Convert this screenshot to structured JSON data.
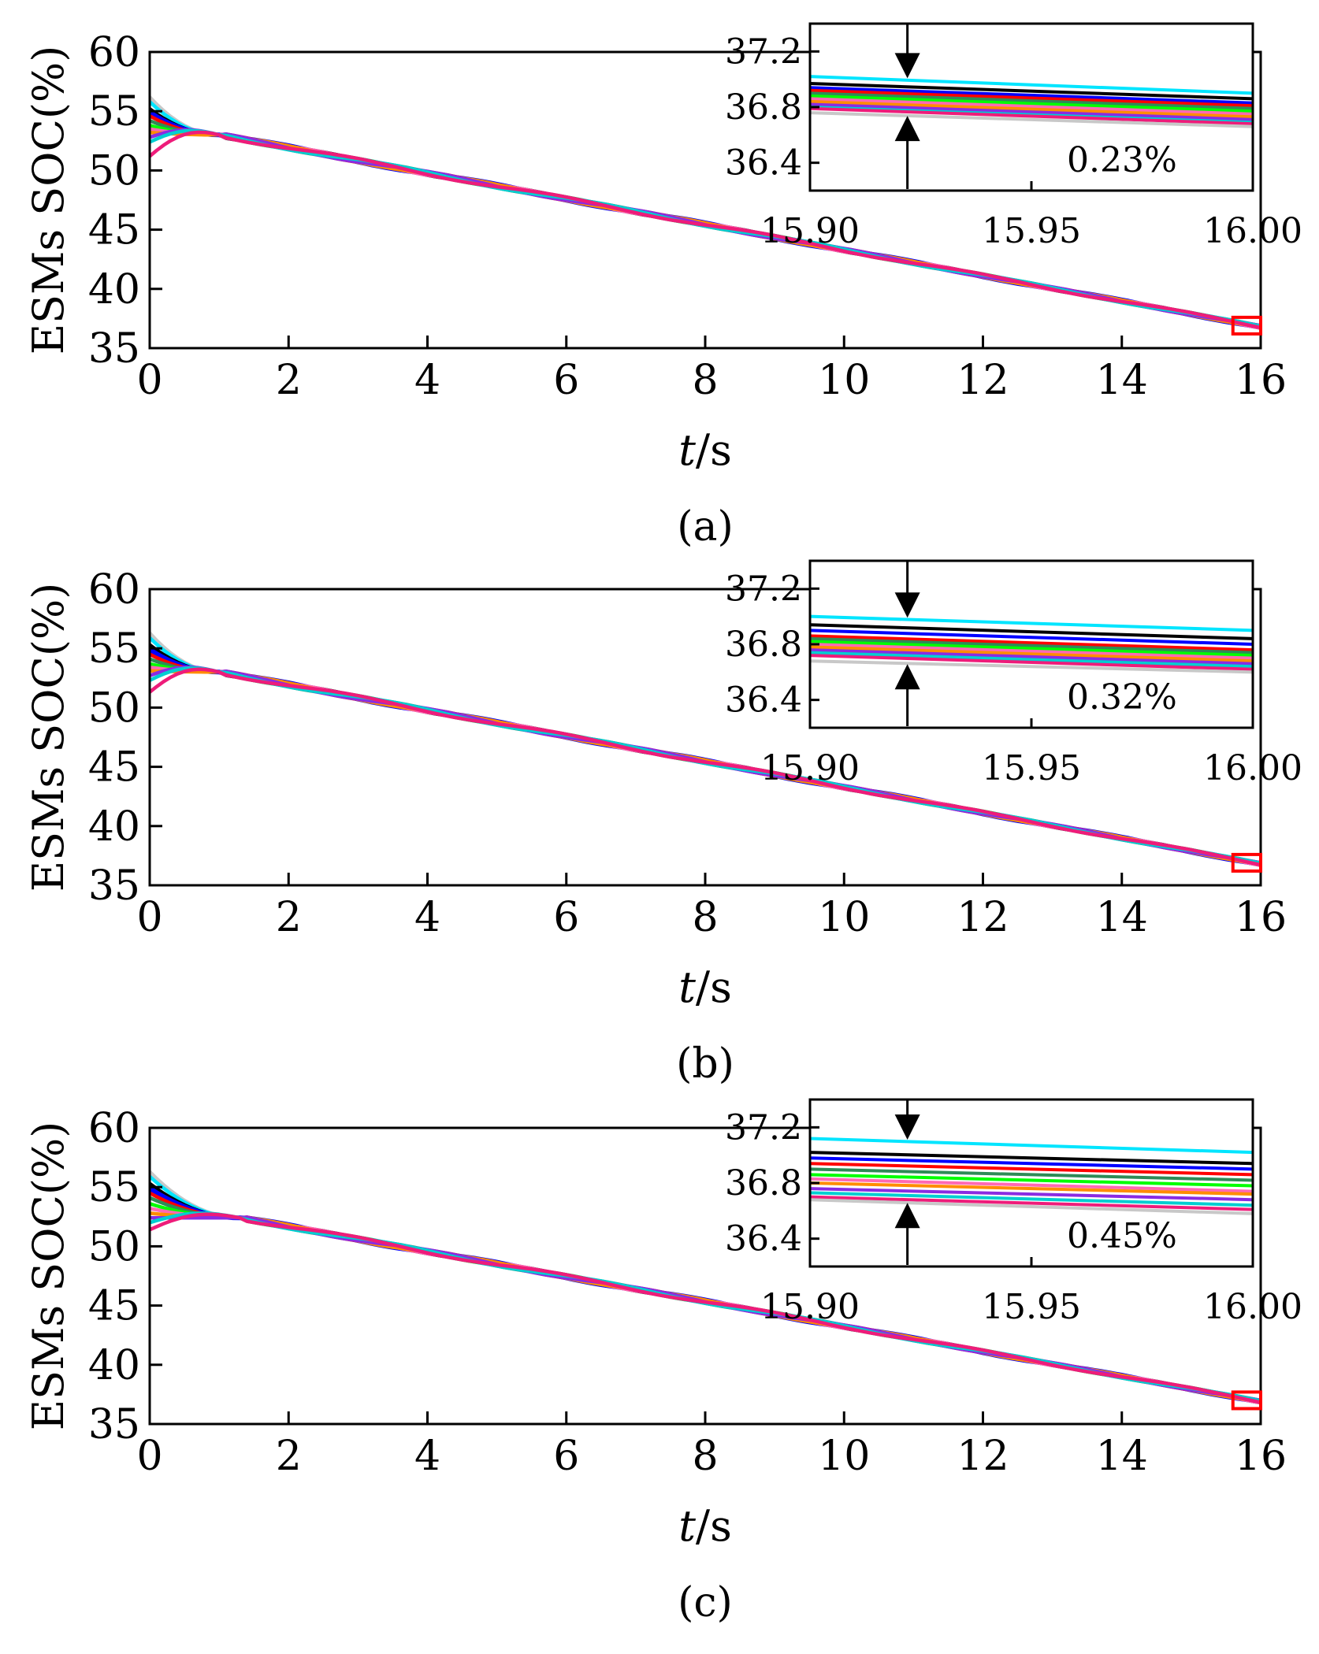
{
  "figure": {
    "panels": [
      {
        "caption": "(a)",
        "ylabel": "ESMs SOC(%)",
        "xlabel_italic": "t",
        "xlabel_unit": "/s",
        "inset_spread": "0.23%"
      },
      {
        "caption": "(b)",
        "ylabel": "ESMs SOC(%)",
        "xlabel_italic": "t",
        "xlabel_unit": "/s",
        "inset_spread": "0.32%"
      },
      {
        "caption": "(c)",
        "ylabel": "ESMs SOC(%)",
        "xlabel_italic": "t",
        "xlabel_unit": "/s",
        "inset_spread": "0.45%"
      }
    ]
  },
  "chart_data": [
    {
      "type": "line",
      "panel": "(a)",
      "xlabel": "t/s",
      "ylabel": "ESMs SOC(%)",
      "xlim": [
        0,
        16
      ],
      "ylim": [
        35,
        60
      ],
      "xticks": [
        0,
        2,
        4,
        6,
        8,
        10,
        12,
        14,
        16
      ],
      "yticks": [
        35,
        40,
        45,
        50,
        55,
        60
      ],
      "series_initial_soc": [
        56.2,
        55.8,
        55.2,
        54.9,
        54.6,
        54.2,
        53.8,
        53.5,
        53.2,
        52.8,
        52.4,
        51.2
      ],
      "converge_time": 1.0,
      "converge_soc": 53.0,
      "end_time": 16,
      "end_soc": 36.8,
      "zoom_box": {
        "x": [
          15.6,
          16.0
        ],
        "y": [
          36.2,
          37.6
        ]
      },
      "inset": {
        "xlim": [
          15.9,
          16.0
        ],
        "ylim": [
          36.2,
          37.4
        ],
        "xticks": [
          "15.90",
          "15.95",
          "16.00"
        ],
        "yticks": [
          "36.4",
          "36.8",
          "37.2"
        ],
        "start_values": [
          37.02,
          36.97,
          36.94,
          36.92,
          36.9,
          36.88,
          36.86,
          36.84,
          36.82,
          36.8,
          36.79,
          36.76
        ],
        "end_values": [
          36.9,
          36.86,
          36.83,
          36.81,
          36.79,
          36.77,
          36.75,
          36.73,
          36.71,
          36.69,
          36.68,
          36.66
        ],
        "arrow_x": 15.922,
        "spread": "0.23%"
      }
    },
    {
      "type": "line",
      "panel": "(b)",
      "xlabel": "t/s",
      "ylabel": "ESMs SOC(%)",
      "xlim": [
        0,
        16
      ],
      "ylim": [
        35,
        60
      ],
      "xticks": [
        0,
        2,
        4,
        6,
        8,
        10,
        12,
        14,
        16
      ],
      "yticks": [
        35,
        40,
        45,
        50,
        55,
        60
      ],
      "series_initial_soc": [
        56.3,
        55.9,
        55.3,
        54.9,
        54.5,
        54.1,
        53.7,
        53.4,
        53.1,
        52.7,
        52.3,
        51.3
      ],
      "converge_time": 1.0,
      "converge_soc": 53.0,
      "end_time": 16,
      "end_soc": 36.8,
      "zoom_box": {
        "x": [
          15.6,
          16.0
        ],
        "y": [
          36.2,
          37.6
        ]
      },
      "inset": {
        "xlim": [
          15.9,
          16.0
        ],
        "ylim": [
          36.2,
          37.4
        ],
        "xticks": [
          "15.90",
          "15.95",
          "16.00"
        ],
        "yticks": [
          "36.4",
          "36.8",
          "37.2"
        ],
        "start_values": [
          37.0,
          36.94,
          36.9,
          36.86,
          36.84,
          36.82,
          36.8,
          36.78,
          36.76,
          36.74,
          36.72,
          36.68
        ],
        "end_values": [
          36.9,
          36.84,
          36.8,
          36.76,
          36.74,
          36.72,
          36.7,
          36.68,
          36.66,
          36.64,
          36.62,
          36.6
        ],
        "arrow_x": 15.922,
        "spread": "0.32%"
      }
    },
    {
      "type": "line",
      "panel": "(c)",
      "xlabel": "t/s",
      "ylabel": "ESMs SOC(%)",
      "xlim": [
        0,
        16
      ],
      "ylim": [
        35,
        60
      ],
      "xticks": [
        0,
        2,
        4,
        6,
        8,
        10,
        12,
        14,
        16
      ],
      "yticks": [
        35,
        40,
        45,
        50,
        55,
        60
      ],
      "series_initial_soc": [
        56.3,
        55.9,
        55.3,
        54.9,
        54.5,
        54.1,
        53.6,
        53.2,
        52.8,
        52.4,
        52.0,
        51.4
      ],
      "converge_time": 1.3,
      "converge_soc": 52.4,
      "end_time": 16,
      "end_soc": 36.9,
      "zoom_box": {
        "x": [
          15.6,
          16.0
        ],
        "y": [
          36.3,
          37.7
        ]
      },
      "inset": {
        "xlim": [
          15.9,
          16.0
        ],
        "ylim": [
          36.2,
          37.4
        ],
        "xticks": [
          "15.90",
          "15.95",
          "16.00"
        ],
        "yticks": [
          "36.4",
          "36.8",
          "37.2"
        ],
        "start_values": [
          37.12,
          37.02,
          36.98,
          36.94,
          36.9,
          36.86,
          36.83,
          36.8,
          36.76,
          36.73,
          36.7,
          36.68
        ],
        "end_values": [
          37.02,
          36.94,
          36.9,
          36.86,
          36.82,
          36.78,
          36.74,
          36.72,
          36.68,
          36.64,
          36.61,
          36.58
        ],
        "arrow_x": 15.922,
        "spread": "0.45%"
      }
    }
  ],
  "colors": {
    "series": [
      "#c8c8c8",
      "#00e5ff",
      "#000000",
      "#0000ff",
      "#ff0000",
      "#2e8b57",
      "#00ff00",
      "#ff69b4",
      "#ff8c00",
      "#8a2be2",
      "#00ced1",
      "#ee1c7a"
    ],
    "zoom_box": "#ff0000",
    "axes": "#000000"
  }
}
